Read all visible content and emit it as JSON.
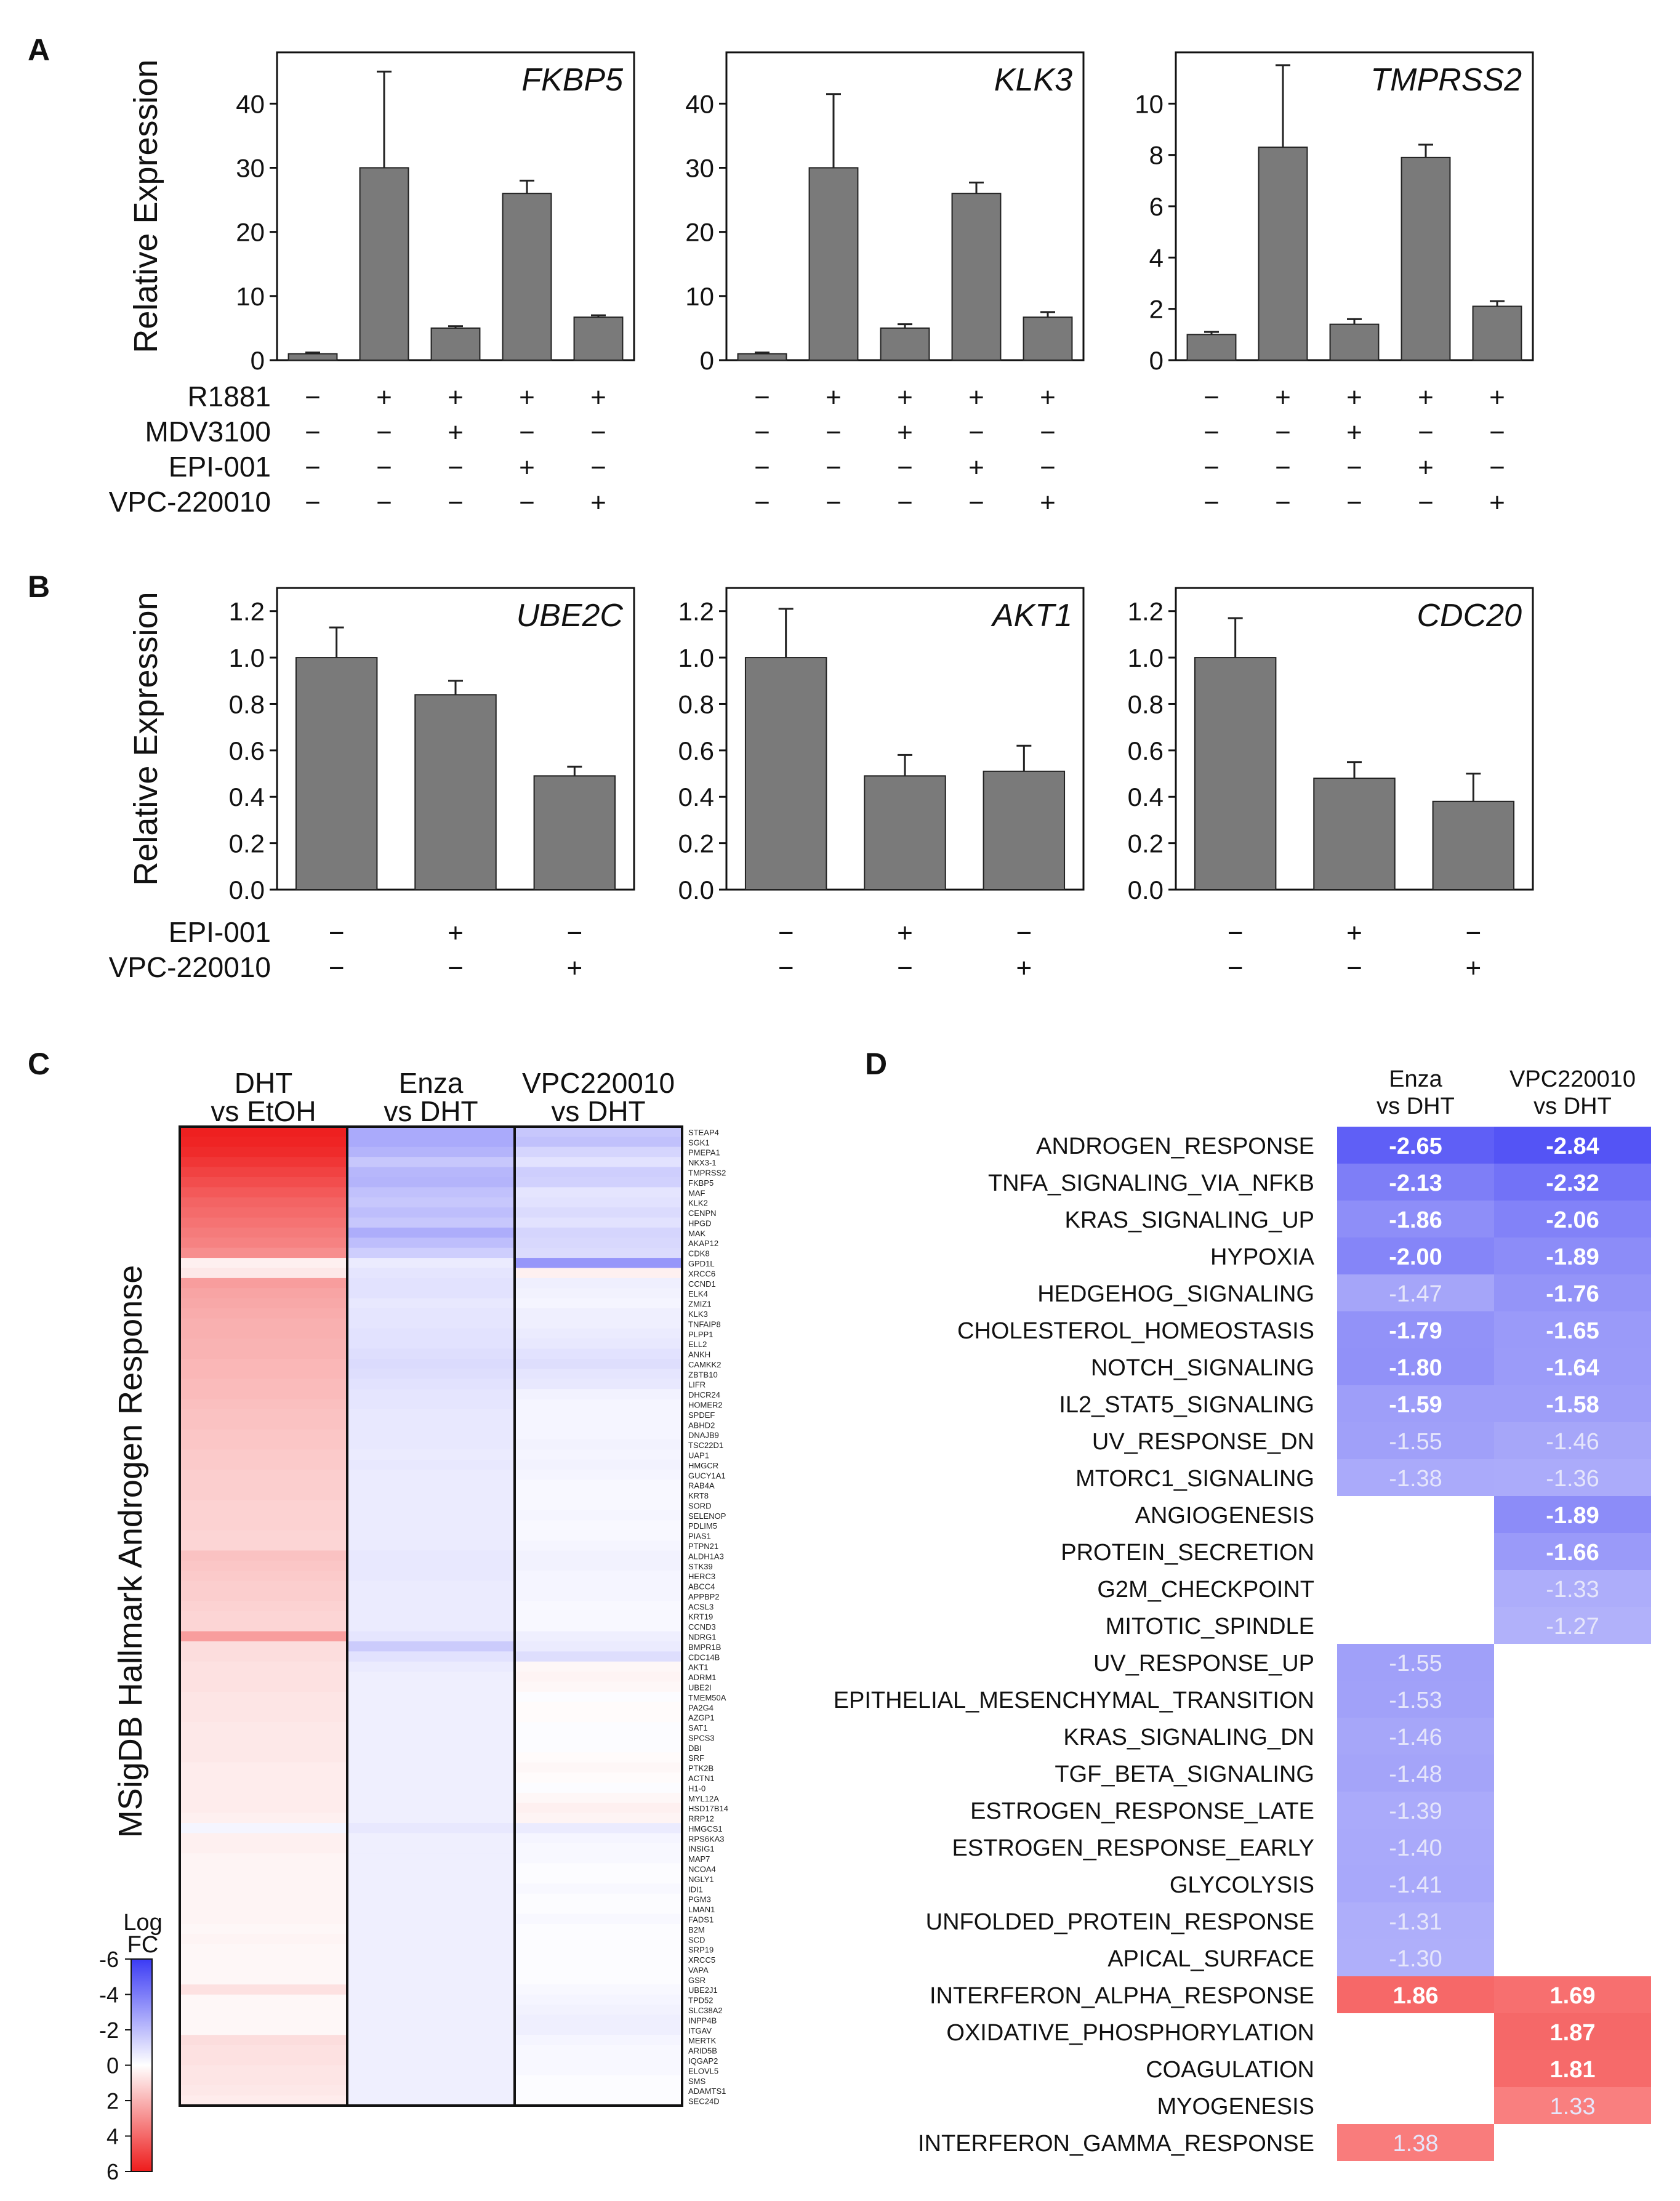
{
  "panels": {
    "A": "A",
    "B": "B",
    "C": "C",
    "D": "D"
  },
  "chart_data": [
    {
      "type": "bar",
      "panel": "A",
      "title": "FKBP5",
      "ylabel": "Relative Expression",
      "ylim": [
        0,
        48
      ],
      "yticks": [
        0,
        10,
        20,
        30,
        40
      ],
      "categories": [
        "1",
        "2",
        "3",
        "4",
        "5"
      ],
      "values": [
        1,
        30,
        5,
        26,
        6.7
      ],
      "errors": [
        0.2,
        15,
        0.3,
        2,
        0.3
      ]
    },
    {
      "type": "bar",
      "panel": "A",
      "title": "KLK3",
      "ylabel": "",
      "ylim": [
        0,
        48
      ],
      "yticks": [
        0,
        10,
        20,
        30,
        40
      ],
      "categories": [
        "1",
        "2",
        "3",
        "4",
        "5"
      ],
      "values": [
        1,
        30,
        5,
        26,
        6.7
      ],
      "errors": [
        0.2,
        11.5,
        0.6,
        1.7,
        0.8
      ]
    },
    {
      "type": "bar",
      "panel": "A",
      "title": "TMPRSS2",
      "ylabel": "",
      "ylim": [
        0,
        12
      ],
      "yticks": [
        0,
        2,
        4,
        6,
        8,
        10
      ],
      "categories": [
        "1",
        "2",
        "3",
        "4",
        "5"
      ],
      "values": [
        1,
        8.3,
        1.4,
        7.9,
        2.1
      ],
      "errors": [
        0.1,
        3.2,
        0.2,
        0.5,
        0.2
      ]
    },
    {
      "type": "bar",
      "panel": "B",
      "title": "UBE2C",
      "ylabel": "Relative Expression",
      "ylim": [
        0,
        1.3
      ],
      "yticks": [
        "0.0",
        "0.2",
        "0.4",
        "0.6",
        "0.8",
        "1.0",
        "1.2"
      ],
      "categories": [
        "1",
        "2",
        "3"
      ],
      "values": [
        1.0,
        0.84,
        0.49
      ],
      "errors": [
        0.13,
        0.06,
        0.04
      ]
    },
    {
      "type": "bar",
      "panel": "B",
      "title": "AKT1",
      "ylabel": "",
      "ylim": [
        0,
        1.3
      ],
      "yticks": [
        "0.0",
        "0.2",
        "0.4",
        "0.6",
        "0.8",
        "1.0",
        "1.2"
      ],
      "categories": [
        "1",
        "2",
        "3"
      ],
      "values": [
        1.0,
        0.49,
        0.51
      ],
      "errors": [
        0.21,
        0.09,
        0.11
      ]
    },
    {
      "type": "bar",
      "panel": "B",
      "title": "CDC20",
      "ylabel": "",
      "ylim": [
        0,
        1.3
      ],
      "yticks": [
        "0.0",
        "0.2",
        "0.4",
        "0.6",
        "0.8",
        "1.0",
        "1.2"
      ],
      "categories": [
        "1",
        "2",
        "3"
      ],
      "values": [
        1.0,
        0.48,
        0.38
      ],
      "errors": [
        0.17,
        0.07,
        0.12
      ]
    },
    {
      "type": "heatmap",
      "panel": "C",
      "ylabel": "MSigDB Hallmark Androgen Response",
      "columns": [
        "DHT\nvs EtOH",
        "Enza\nvs DHT",
        "VPC220010\nvs DHT"
      ],
      "genes": [
        "STEAP4",
        "SGK1",
        "PMEPA1",
        "NKX3-1",
        "TMPRSS2",
        "FKBP5",
        "MAF",
        "KLK2",
        "CENPN",
        "HPGD",
        "MAK",
        "AKAP12",
        "CDK8",
        "GPD1L",
        "XRCC6",
        "CCND1",
        "ELK4",
        "ZMIZ1",
        "KLK3",
        "TNFAIP8",
        "PLPP1",
        "ELL2",
        "ANKH",
        "CAMKK2",
        "ZBTB10",
        "LIFR",
        "DHCR24",
        "HOMER2",
        "SPDEF",
        "ABHD2",
        "DNAJB9",
        "TSC22D1",
        "UAP1",
        "HMGCR",
        "GUCY1A1",
        "RAB4A",
        "KRT8",
        "SORD",
        "SELENOP",
        "PDLIM5",
        "PIAS1",
        "PTPN21",
        "ALDH1A3",
        "STK39",
        "HERC3",
        "ABCC4",
        "APPBP2",
        "ACSL3",
        "KRT19",
        "CCND3",
        "NDRG1",
        "BMPR1B",
        "CDC14B",
        "AKT1",
        "ADRM1",
        "UBE2I",
        "TMEM50A",
        "PA2G4",
        "AZGP1",
        "SAT1",
        "SPCS3",
        "DBI",
        "SRF",
        "PTK2B",
        "ACTN1",
        "H1-0",
        "MYL12A",
        "HSD17B14",
        "RRP12",
        "HMGCS1",
        "RPS6KA3",
        "INSIG1",
        "MAP7",
        "NCOA4",
        "NGLY1",
        "IDI1",
        "PGM3",
        "LMAN1",
        "FADS1",
        "B2M",
        "SCD",
        "SRP19",
        "XRCC5",
        "VAPA",
        "GSR",
        "UBE2J1",
        "TPD52",
        "SLC38A2",
        "INPP4B",
        "ITGAV",
        "MERTK",
        "ARID5B",
        "IQGAP2",
        "ELOVL5",
        "SMS",
        "ADAMTS1",
        "SEC24D"
      ],
      "values": [
        [
          5.9,
          5.8,
          5.6,
          5.3,
          5.0,
          4.7,
          4.4,
          4.1,
          3.9,
          3.7,
          3.5,
          3.3,
          3.0,
          0.4,
          0.6,
          2.6,
          2.4,
          2.3,
          2.2,
          2.1,
          2.1,
          2.0,
          2.0,
          1.9,
          1.9,
          1.8,
          1.8,
          1.7,
          1.6,
          1.6,
          1.5,
          1.5,
          1.4,
          1.4,
          1.3,
          1.3,
          1.3,
          1.2,
          1.2,
          1.2,
          1.1,
          1.1,
          1.6,
          1.5,
          1.4,
          1.3,
          1.3,
          1.2,
          1.1,
          1.1,
          2.6,
          0.9,
          0.9,
          0.8,
          0.8,
          0.8,
          0.7,
          0.7,
          0.7,
          0.6,
          0.6,
          0.6,
          0.6,
          0.5,
          0.5,
          0.5,
          0.5,
          0.5,
          0.4,
          -0.3,
          0.4,
          0.4,
          0.3,
          0.3,
          0.3,
          0.3,
          0.3,
          0.3,
          0.3,
          0.2,
          0.3,
          0.2,
          0.2,
          0.2,
          0.2,
          0.8,
          0.2,
          0.2,
          0.2,
          0.2,
          0.9,
          0.8,
          0.8,
          0.7,
          0.7,
          0.6,
          0.5
        ],
        [
          -2.6,
          -2.6,
          -2.3,
          -1.7,
          -2.2,
          -2.3,
          -1.9,
          -1.7,
          -2.0,
          -1.7,
          -2.5,
          -2.0,
          -1.5,
          -0.6,
          -0.8,
          -0.9,
          -0.9,
          -0.7,
          -0.8,
          -0.8,
          -0.9,
          -0.9,
          -1.0,
          -1.1,
          -1.0,
          -0.9,
          -0.8,
          -0.8,
          -0.7,
          -0.7,
          -0.7,
          -0.7,
          -0.6,
          -0.7,
          -0.6,
          -0.6,
          -0.6,
          -0.6,
          -0.6,
          -0.6,
          -0.6,
          -0.6,
          -0.7,
          -0.7,
          -0.7,
          -0.6,
          -0.6,
          -0.6,
          -0.6,
          -0.6,
          -0.8,
          -1.6,
          -0.9,
          -0.6,
          -0.5,
          -0.5,
          -0.5,
          -0.5,
          -0.5,
          -0.5,
          -0.5,
          -0.5,
          -0.5,
          -0.5,
          -0.5,
          -0.5,
          -0.5,
          -0.5,
          -0.5,
          -0.7,
          -0.5,
          -0.5,
          -0.5,
          -0.5,
          -0.5,
          -0.5,
          -0.5,
          -0.5,
          -0.5,
          -0.5,
          -0.5,
          -0.5,
          -0.5,
          -0.5,
          -0.5,
          -0.5,
          -0.5,
          -0.5,
          -0.5,
          -0.5,
          -0.5,
          -0.5,
          -0.5,
          -0.5,
          -0.5,
          -0.5,
          -0.5
        ],
        [
          -1.7,
          -1.9,
          -1.3,
          -0.9,
          -1.5,
          -1.4,
          -0.8,
          -0.9,
          -1.1,
          -0.9,
          -1.3,
          -1.2,
          -1.1,
          -3.2,
          0.4,
          -0.5,
          -0.4,
          -0.3,
          -0.5,
          -0.5,
          -0.6,
          -0.7,
          -0.9,
          -1.0,
          -0.8,
          -0.7,
          -0.4,
          -0.3,
          -0.3,
          -0.3,
          -0.3,
          -0.4,
          -0.3,
          -0.4,
          -0.3,
          -0.2,
          -0.2,
          -0.2,
          -0.3,
          -0.2,
          -0.2,
          -0.3,
          -0.4,
          -0.4,
          -0.3,
          -0.3,
          -0.3,
          -0.2,
          -0.2,
          -0.2,
          -0.5,
          -0.6,
          -1.0,
          0.2,
          0.3,
          0.2,
          -0.1,
          0.1,
          0.1,
          -0.1,
          -0.1,
          -0.1,
          0.1,
          0.2,
          0.1,
          -0.1,
          0.2,
          0.4,
          0.3,
          -0.6,
          -0.3,
          -0.2,
          -0.2,
          -0.1,
          -0.1,
          -0.2,
          -0.1,
          -0.1,
          -0.2,
          -0.1,
          -0.1,
          -0.1,
          -0.1,
          -0.1,
          -0.1,
          -0.2,
          -0.3,
          -0.4,
          -0.5,
          -0.5,
          -0.3,
          -0.2,
          -0.2,
          -0.2,
          -0.1,
          -0.1,
          -0.1
        ]
      ],
      "colorbar": {
        "title": "Log\nFC",
        "min": 6,
        "max": -6,
        "ticks": [
          -6,
          -4,
          -2,
          0,
          2,
          4,
          6
        ]
      }
    },
    {
      "type": "table",
      "panel": "D",
      "columns": [
        "Enza\nvs DHT",
        "VPC220010\nvs DHT"
      ],
      "rows": [
        {
          "name": "ANDROGEN_RESPONSE",
          "enza": -2.65,
          "vpc": -2.84
        },
        {
          "name": "TNFA_SIGNALING_VIA_NFKB",
          "enza": -2.13,
          "vpc": -2.32
        },
        {
          "name": "KRAS_SIGNALING_UP",
          "enza": -1.86,
          "vpc": -2.06
        },
        {
          "name": "HYPOXIA",
          "enza": -2.0,
          "vpc": -1.89
        },
        {
          "name": "HEDGEHOG_SIGNALING",
          "enza": -1.47,
          "vpc": -1.76
        },
        {
          "name": "CHOLESTEROL_HOMEOSTASIS",
          "enza": -1.79,
          "vpc": -1.65
        },
        {
          "name": "NOTCH_SIGNALING",
          "enza": -1.8,
          "vpc": -1.64
        },
        {
          "name": "IL2_STAT5_SIGNALING",
          "enza": -1.59,
          "vpc": -1.58
        },
        {
          "name": "UV_RESPONSE_DN",
          "enza": -1.55,
          "vpc": -1.46
        },
        {
          "name": "MTORC1_SIGNALING",
          "enza": -1.38,
          "vpc": -1.36
        },
        {
          "name": "ANGIOGENESIS",
          "enza": null,
          "vpc": -1.89
        },
        {
          "name": "PROTEIN_SECRETION",
          "enza": null,
          "vpc": -1.66
        },
        {
          "name": "G2M_CHECKPOINT",
          "enza": null,
          "vpc": -1.33
        },
        {
          "name": "MITOTIC_SPINDLE",
          "enza": null,
          "vpc": -1.27
        },
        {
          "name": "UV_RESPONSE_UP",
          "enza": -1.55,
          "vpc": null
        },
        {
          "name": "EPITHELIAL_MESENCHYMAL_TRANSITION",
          "enza": -1.53,
          "vpc": null
        },
        {
          "name": "KRAS_SIGNALING_DN",
          "enza": -1.46,
          "vpc": null
        },
        {
          "name": "TGF_BETA_SIGNALING",
          "enza": -1.48,
          "vpc": null
        },
        {
          "name": "ESTROGEN_RESPONSE_LATE",
          "enza": -1.39,
          "vpc": null
        },
        {
          "name": "ESTROGEN_RESPONSE_EARLY",
          "enza": -1.4,
          "vpc": null
        },
        {
          "name": "GLYCOLYSIS",
          "enza": -1.41,
          "vpc": null
        },
        {
          "name": "UNFOLDED_PROTEIN_RESPONSE",
          "enza": -1.31,
          "vpc": null
        },
        {
          "name": "APICAL_SURFACE",
          "enza": -1.3,
          "vpc": null
        },
        {
          "name": "INTERFERON_ALPHA_RESPONSE",
          "enza": 1.86,
          "vpc": 1.69
        },
        {
          "name": "OXIDATIVE_PHOSPHORYLATION",
          "enza": null,
          "vpc": 1.87
        },
        {
          "name": "COAGULATION",
          "enza": null,
          "vpc": 1.81
        },
        {
          "name": "MYOGENESIS",
          "enza": null,
          "vpc": 1.33
        },
        {
          "name": "INTERFERON_GAMMA_RESPONSE",
          "enza": 1.38,
          "vpc": null
        }
      ]
    }
  ],
  "treatments": {
    "A": {
      "labels": [
        "R1881",
        "MDV3100",
        "EPI-001",
        "VPC-220010"
      ],
      "signs": [
        [
          "−",
          "+",
          "+",
          "+",
          "+"
        ],
        [
          "−",
          "−",
          "+",
          "−",
          "−"
        ],
        [
          "−",
          "−",
          "−",
          "+",
          "−"
        ],
        [
          "−",
          "−",
          "−",
          "−",
          "+"
        ]
      ]
    },
    "B": {
      "labels": [
        "EPI-001",
        "VPC-220010"
      ],
      "signs": [
        [
          "−",
          "+",
          "−"
        ],
        [
          "−",
          "−",
          "+"
        ]
      ]
    }
  },
  "colors": {
    "bar": "#7a7a7a",
    "blue": "#3b3bf5",
    "red": "#ee1c1c"
  }
}
